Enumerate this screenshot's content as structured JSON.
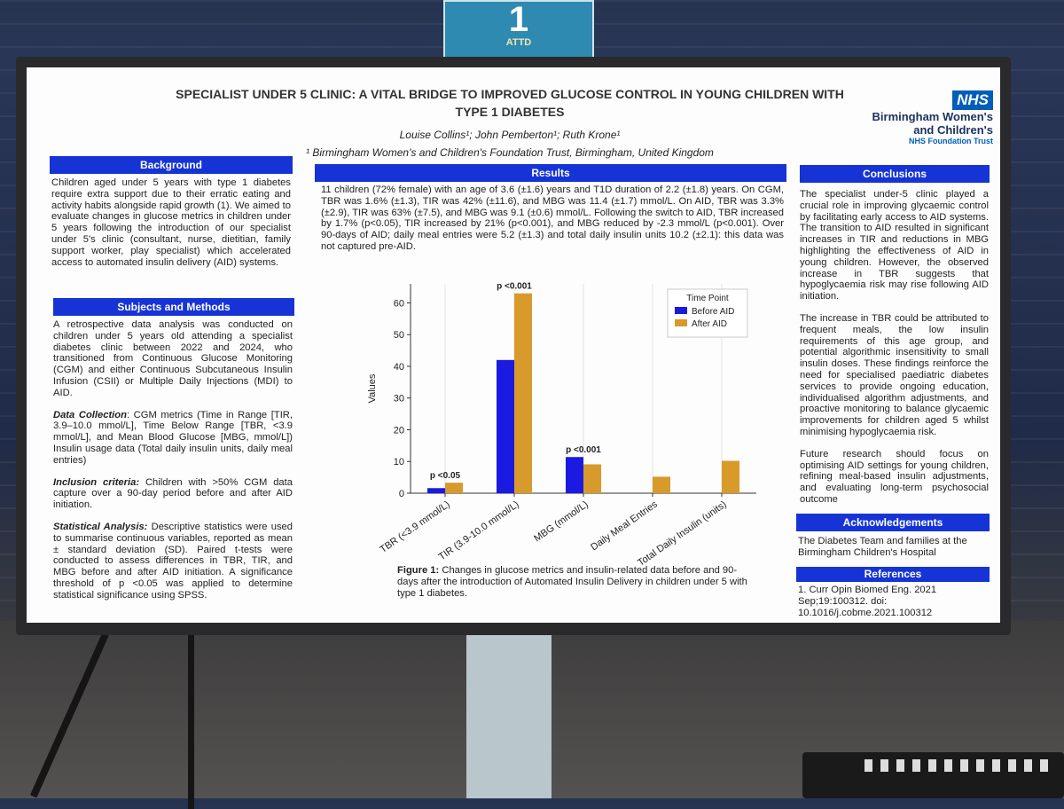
{
  "sign": {
    "number": "1",
    "brand": "ATTD"
  },
  "header": {
    "title": "SPECIALIST UNDER 5 CLINIC: A VITAL BRIDGE TO IMPROVED GLUCOSE CONTROL IN YOUNG CHILDREN WITH TYPE 1 DIABETES",
    "authors": "Louise Collins¹; John Pemberton¹; Ruth Krone¹",
    "affiliation": "¹ Birmingham Women's and Children's Foundation Trust, Birmingham, United Kingdom"
  },
  "nhs": {
    "logo": "NHS",
    "org_line1": "Birmingham Women's",
    "org_line2": "and Children's",
    "trust": "NHS Foundation Trust"
  },
  "background": {
    "heading": "Background",
    "text": "Children aged under 5 years with type 1 diabetes require extra support due to their erratic eating and activity habits alongside rapid growth (1). We aimed to evaluate changes in glucose metrics in children under 5 years following the introduction of our specialist under 5's clinic (consultant, nurse, dietitian, family support worker, play specialist) which accelerated access to automated insulin delivery (AID) systems."
  },
  "methods": {
    "heading": "Subjects and Methods",
    "intro": "A retrospective data analysis was conducted on children under 5 years old attending a specialist diabetes clinic between 2022 and 2024, who transitioned from Continuous Glucose Monitoring (CGM) and either Continuous Subcutaneous Insulin Infusion (CSII) or Multiple Daily Injections (MDI) to AID.",
    "collection_label": "Data Collection",
    "collection_text": ": CGM metrics (Time in Range [TIR, 3.9–10.0 mmol/L], Time Below Range [TBR, <3.9 mmol/L], and Mean Blood Glucose [MBG, mmol/L]) Insulin usage data (Total daily insulin units, daily meal entries)",
    "inclusion_label": "Inclusion criteria:",
    "inclusion_text": " Children with >50% CGM data capture over a 90-day period before and after AID initiation.",
    "stats_label": "Statistical Analysis:",
    "stats_text": " Descriptive statistics were used to summarise continuous variables, reported as mean ± standard deviation (SD). Paired t-tests were conducted to assess differences in TBR, TIR, and MBG before and after AID initiation. A significance threshold of p <0.05 was applied to determine statistical significance using SPSS."
  },
  "results": {
    "heading": "Results",
    "text": "11 children (72% female) with an age of 3.6 (±1.6) years and T1D duration of 2.2 (±1.8) years. On CGM, TBR was 1.6% (±1.3), TIR was 42% (±11.6), and MBG was 11.4 (±1.7) mmol/L. On AID, TBR was 3.3% (±2.9), TIR was 63% (±7.5), and MBG was 9.1 (±0.6) mmol/L. Following the switch to AID, TBR increased by 1.7% (p<0.05), TIR increased by 21% (p<0.001), and MBG reduced by -2.3 mmol/L (p<0.001). Over 90-days of AID; daily meal entries were 5.2 (±1.3) and total daily insulin units 10.2 (±2.1): this data was not captured pre-AID.",
    "caption_label": "Figure 1:",
    "caption_text": " Changes in glucose metrics and insulin-related data before and 90-days after the introduction of Automated Insulin Delivery in children under 5 with type 1 diabetes."
  },
  "chart_data": {
    "type": "bar",
    "title": "",
    "xlabel": "",
    "ylabel": "Values",
    "ylim": [
      0,
      66
    ],
    "yticks": [
      0,
      10,
      20,
      30,
      40,
      50,
      60
    ],
    "grid": "vertical",
    "legend_title": "Time Point",
    "legend_position": "top-right",
    "categories": [
      "TBR (<3.9 mmol/L)",
      "TIR (3.9-10.0 mmol/L)",
      "MBG (mmol/L)",
      "Daily Meal Entries",
      "Total Daily Insulin (units)"
    ],
    "series": [
      {
        "name": "Before AID",
        "color": "#1a1ae0",
        "values": [
          1.6,
          42,
          11.4,
          null,
          null
        ]
      },
      {
        "name": "After AID",
        "color": "#d89a2a",
        "values": [
          3.3,
          63,
          9.1,
          5.2,
          10.2
        ]
      }
    ],
    "annotations": [
      "p <0.05",
      "p <0.001",
      "p <0.001",
      "",
      ""
    ]
  },
  "conclusions": {
    "heading": "Conclusions",
    "p1": "The specialist under-5 clinic played a crucial role in improving glycaemic control by facilitating early access to AID systems. The transition to AID resulted in significant increases in TIR and reductions in MBG highlighting the effectiveness of AID in young children. However, the observed increase in TBR suggests that hypoglycaemia risk may rise following AID initiation.",
    "p2": "The increase in TBR could be attributed to frequent meals, the low insulin requirements of this age group, and potential algorithmic insensitivity to small insulin doses. These findings reinforce the need for specialised paediatric diabetes services to provide ongoing education, individualised algorithm adjustments, and proactive monitoring to balance glycaemic improvements for children aged 5 whilst minimising hypoglycaemia risk.",
    "p3": "Future research should focus on optimising AID settings for young children, refining meal-based insulin adjustments, and evaluating long-term psychosocial outcome"
  },
  "acknowledgements": {
    "heading": "Acknowledgements",
    "text": "The Diabetes Team and families at the Birmingham Children's Hospital"
  },
  "references": {
    "heading": "References",
    "text": "1. Curr Opin Biomed Eng. 2021 Sep;19:100312. doi: 10.1016/j.cobme.2021.100312"
  }
}
